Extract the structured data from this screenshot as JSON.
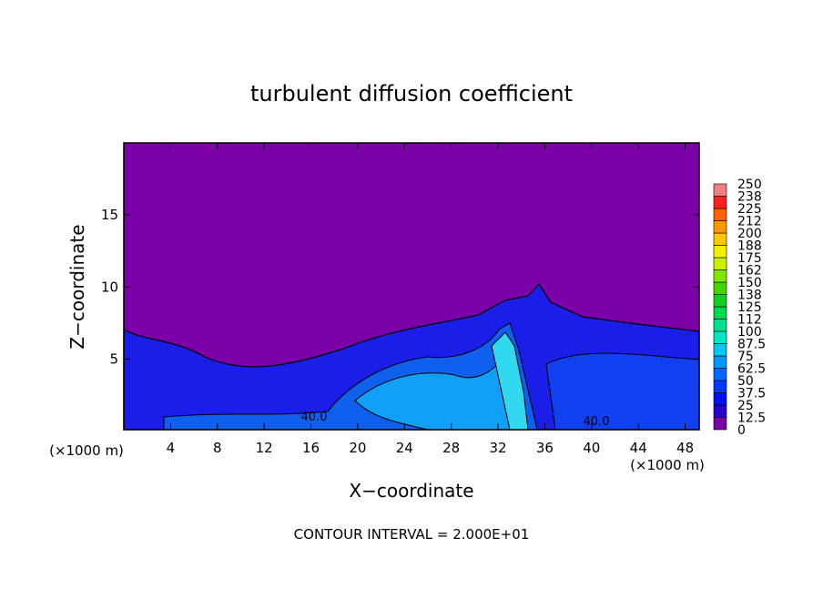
{
  "chart_data": {
    "type": "contour",
    "title": "turbulent diffusion coefficient",
    "xlabel": "X−coordinate",
    "ylabel": "Z−coordinate",
    "x_unit_left": "(×1000 m)",
    "x_unit_right": "(×1000 m)",
    "footer": "CONTOUR INTERVAL = 2.000E+01",
    "xlim": [
      0,
      49.2
    ],
    "ylim": [
      0.1,
      20
    ],
    "xticks": [
      4,
      8,
      12,
      16,
      20,
      24,
      28,
      32,
      36,
      40,
      44,
      48
    ],
    "yticks": [
      5,
      10,
      15
    ],
    "contour_labels": [
      {
        "value": 40,
        "label": "40.0"
      },
      {
        "value": 40,
        "label": "40.0"
      }
    ],
    "colorbar": {
      "levels": [
        0,
        12.5,
        25,
        37.5,
        50,
        62.5,
        75,
        87.5,
        100,
        {
          "value": 112.5,
          "label": "112"
        },
        125,
        {
          "value": 137.5,
          "label": "138"
        },
        150,
        {
          "value": 162.5,
          "label": "162"
        },
        175,
        {
          "value": 187.5,
          "label": "188"
        },
        200,
        {
          "value": 212.5,
          "label": "212"
        },
        225,
        {
          "value": 237.5,
          "label": "238"
        },
        250
      ],
      "colors": [
        "#7b00a8",
        "#2a00d0",
        "#0010f0",
        "#0038ff",
        "#0068ff",
        "#0098ff",
        "#00c8f0",
        "#00e8c8",
        "#00e090",
        "#00d850",
        "#10d020",
        "#40d800",
        "#80e800",
        "#c8f000",
        "#f0f000",
        "#ffc800",
        "#ff9800",
        "#ff6000",
        "#ff2020",
        "#f08080"
      ]
    }
  }
}
